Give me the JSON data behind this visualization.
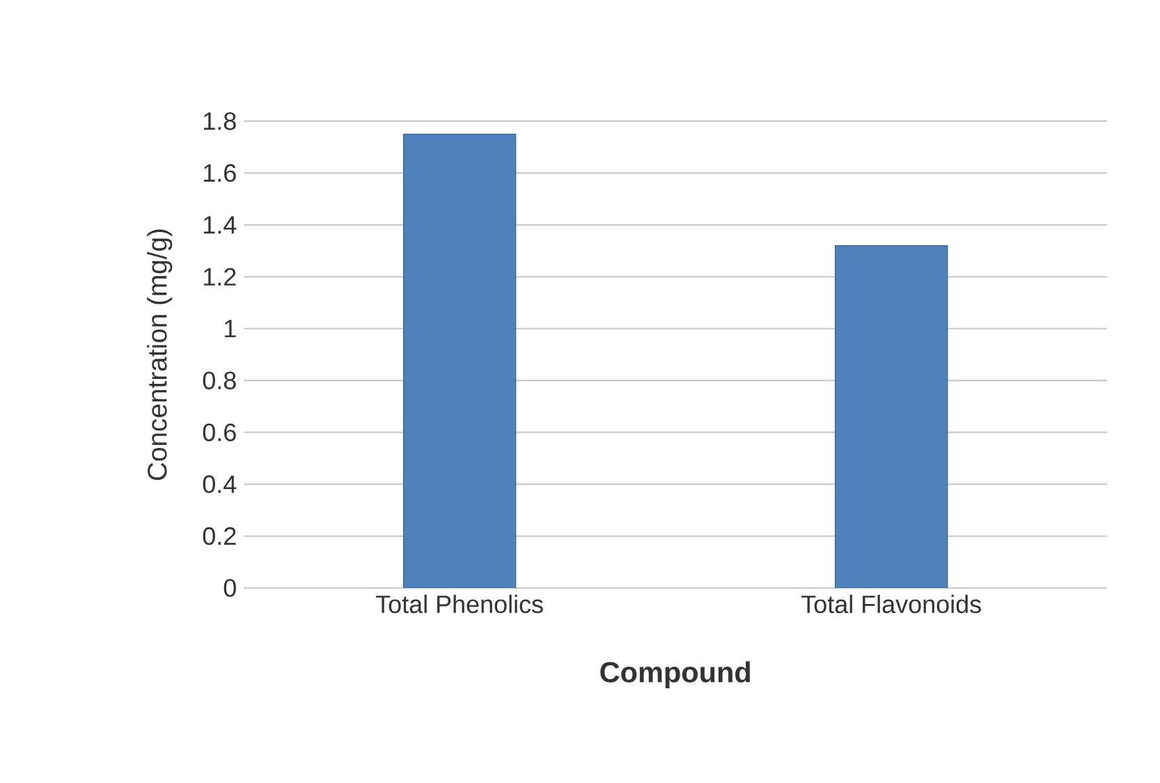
{
  "chart_data": {
    "type": "bar",
    "xlabel": "Compound",
    "ylabel": "Concentration (mg/g)",
    "categories": [
      "Total Phenolics",
      "Total Flavonoids"
    ],
    "values": [
      1.75,
      1.32
    ],
    "color": "#4f81bd",
    "ylim": [
      0,
      1.8
    ],
    "yticks": [
      0,
      0.2,
      0.4,
      0.6,
      0.8,
      1,
      1.2,
      1.4,
      1.6,
      1.8
    ],
    "grid": "y"
  }
}
